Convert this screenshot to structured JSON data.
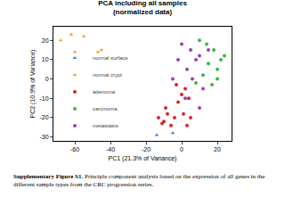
{
  "chart_data": {
    "type": "scatter",
    "title": "PCA including all samples",
    "subtitle": "(normalized data)",
    "x_label": "PC1 (21.3% of Variance)",
    "y_label": "PC2 (10.9% of Variance)",
    "xlim": [
      -72,
      28
    ],
    "ylim": [
      -32,
      27
    ],
    "xticks": [
      -60,
      -40,
      -20,
      0,
      20
    ],
    "yticks": [
      -30,
      -20,
      -10,
      0,
      10,
      20
    ],
    "grid": false,
    "legend": "bottom left",
    "series": [
      {
        "name": "normal surface",
        "color": "#3a7fc4",
        "marker": "triangle",
        "x": [
          -14,
          -5
        ],
        "values": [
          -29,
          -28
        ]
      },
      {
        "name": "normal crypt",
        "color": "#f39a2c",
        "marker": "triangle",
        "x": [
          -68,
          -62,
          -55,
          -60,
          -47,
          -45
        ],
        "values": [
          20,
          23,
          22,
          14,
          14,
          15
        ]
      },
      {
        "name": "adenoma",
        "color": "#d7262b",
        "marker": "circle",
        "x": [
          -13,
          -10,
          -8,
          -6,
          -4,
          -9,
          -2,
          0,
          2,
          4,
          -3,
          1,
          -11,
          5,
          3
        ],
        "values": [
          -20,
          -22,
          -18,
          -24,
          -20,
          -15,
          -12,
          -8,
          -5,
          -10,
          -3,
          -18,
          -23,
          -20,
          -24
        ]
      },
      {
        "name": "carcinoma",
        "color": "#3cb54a",
        "marker": "circle",
        "x": [
          10,
          14,
          18,
          22,
          20,
          15,
          12,
          8,
          24,
          17,
          20
        ],
        "values": [
          20,
          18,
          15,
          10,
          5,
          8,
          2,
          -2,
          12,
          -3,
          0
        ]
      },
      {
        "name": "metastasis",
        "color": "#9b3fb5",
        "marker": "circle",
        "x": [
          0,
          5,
          8,
          3,
          -2,
          10,
          6,
          12,
          2,
          10,
          15,
          -5
        ],
        "values": [
          18,
          15,
          10,
          5,
          10,
          12,
          0,
          -5,
          -10,
          -15,
          15,
          0
        ]
      }
    ],
    "caption_label": "Supplementary Figure S1.",
    "caption": "Principle component analysis based on the expression of all genes in the different sample types from the CRC progression series."
  }
}
